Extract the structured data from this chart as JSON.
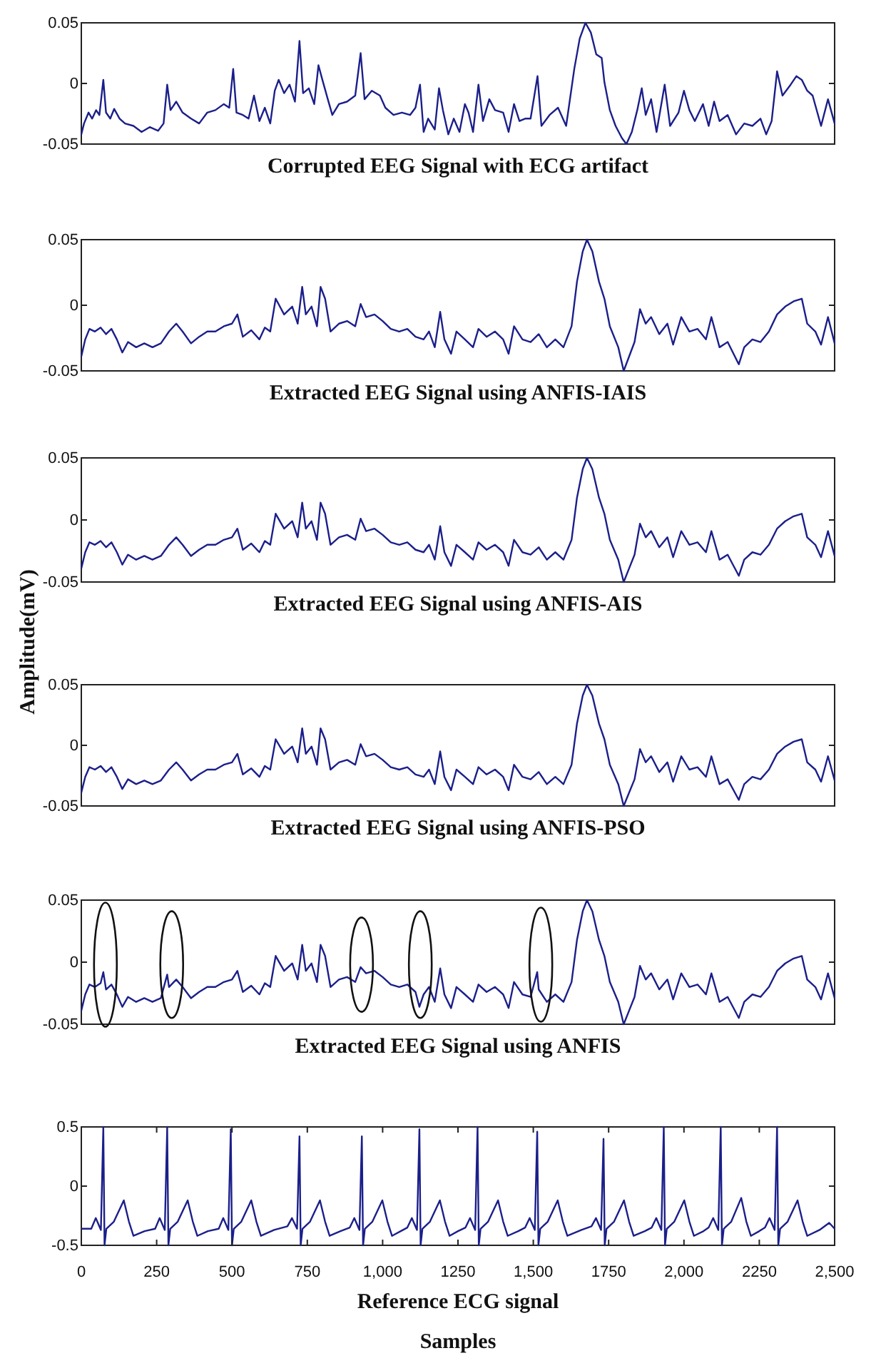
{
  "chart_data": [
    {
      "type": "line",
      "title": "Corrupted EEG Signal with ECG artifact",
      "xlim": [
        0,
        2500
      ],
      "ylim": [
        -0.05,
        0.05
      ],
      "yticks": [
        -0.05,
        0,
        0.05
      ],
      "tick_labels": "y",
      "color": "#1b1f8a",
      "x": [
        0,
        9,
        24,
        36,
        49,
        60,
        73,
        82,
        96,
        109,
        127,
        145,
        173,
        200,
        227,
        255,
        273,
        285,
        296,
        315,
        336,
        364,
        391,
        418,
        445,
        473,
        491,
        504,
        515,
        536,
        555,
        573,
        591,
        609,
        627,
        642,
        655,
        673,
        691,
        709,
        724,
        736,
        755,
        773,
        787,
        800,
        818,
        833,
        855,
        882,
        909,
        927,
        940,
        964,
        991,
        1009,
        1036,
        1064,
        1091,
        1109,
        1124,
        1136,
        1151,
        1173,
        1187,
        1200,
        1218,
        1236,
        1255,
        1273,
        1285,
        1300,
        1318,
        1333,
        1354,
        1373,
        1400,
        1418,
        1436,
        1454,
        1473,
        1491,
        1514,
        1527,
        1554,
        1582,
        1609,
        1636,
        1654,
        1673,
        1691,
        1709,
        1727,
        1736,
        1754,
        1773,
        1794,
        1809,
        1827,
        1845,
        1860,
        1873,
        1891,
        1909,
        1936,
        1954,
        1982,
        2000,
        2018,
        2036,
        2063,
        2082,
        2100,
        2118,
        2145,
        2173,
        2200,
        2227,
        2254,
        2273,
        2291,
        2309,
        2327,
        2354,
        2373,
        2391,
        2409,
        2427,
        2455,
        2478,
        2500
      ],
      "values": [
        -0.042,
        -0.033,
        -0.024,
        -0.029,
        -0.022,
        -0.026,
        0.003,
        -0.024,
        -0.029,
        -0.021,
        -0.029,
        -0.033,
        -0.035,
        -0.04,
        -0.036,
        -0.039,
        -0.033,
        -0.001,
        -0.022,
        -0.015,
        -0.024,
        -0.029,
        -0.033,
        -0.024,
        -0.022,
        -0.017,
        -0.02,
        0.012,
        -0.024,
        -0.026,
        -0.029,
        -0.01,
        -0.031,
        -0.02,
        -0.033,
        -0.006,
        0.003,
        -0.008,
        -0.001,
        -0.015,
        0.035,
        -0.008,
        -0.004,
        -0.017,
        0.015,
        0.003,
        -0.013,
        -0.026,
        -0.017,
        -0.015,
        -0.01,
        0.025,
        -0.013,
        -0.006,
        -0.01,
        -0.02,
        -0.026,
        -0.024,
        -0.026,
        -0.02,
        -0.001,
        -0.04,
        -0.029,
        -0.038,
        -0.004,
        -0.022,
        -0.042,
        -0.029,
        -0.04,
        -0.017,
        -0.024,
        -0.04,
        -0.001,
        -0.031,
        -0.013,
        -0.022,
        -0.024,
        -0.04,
        -0.017,
        -0.031,
        -0.029,
        -0.029,
        0.006,
        -0.035,
        -0.026,
        -0.02,
        -0.035,
        0.012,
        0.037,
        0.05,
        0.042,
        0.024,
        0.021,
        0.001,
        -0.022,
        -0.035,
        -0.045,
        -0.05,
        -0.04,
        -0.022,
        -0.004,
        -0.026,
        -0.013,
        -0.04,
        -0.001,
        -0.035,
        -0.024,
        -0.006,
        -0.022,
        -0.031,
        -0.017,
        -0.035,
        -0.015,
        -0.031,
        -0.026,
        -0.042,
        -0.033,
        -0.035,
        -0.029,
        -0.042,
        -0.031,
        0.01,
        -0.01,
        -0.001,
        0.006,
        0.003,
        -0.006,
        -0.01,
        -0.035,
        -0.013,
        -0.033
      ]
    },
    {
      "type": "line",
      "title": "Extracted EEG Signal using ANFIS-IAIS",
      "xlim": [
        0,
        2500
      ],
      "ylim": [
        -0.05,
        0.05
      ],
      "yticks": [
        -0.05,
        0,
        0.05
      ],
      "tick_labels": "y",
      "color": "#1b1f8a",
      "x": [
        0,
        13,
        27,
        45,
        64,
        82,
        100,
        118,
        136,
        155,
        182,
        209,
        236,
        264,
        291,
        315,
        336,
        364,
        391,
        418,
        445,
        473,
        500,
        518,
        536,
        564,
        591,
        609,
        627,
        645,
        673,
        700,
        718,
        733,
        745,
        764,
        782,
        794,
        809,
        827,
        855,
        882,
        909,
        927,
        945,
        973,
        1000,
        1027,
        1055,
        1082,
        1109,
        1136,
        1154,
        1173,
        1191,
        1205,
        1227,
        1245,
        1273,
        1300,
        1318,
        1345,
        1373,
        1400,
        1418,
        1436,
        1464,
        1491,
        1518,
        1545,
        1573,
        1600,
        1627,
        1645,
        1664,
        1678,
        1696,
        1718,
        1736,
        1754,
        1782,
        1800,
        1818,
        1836,
        1854,
        1873,
        1891,
        1918,
        1945,
        1964,
        1991,
        2018,
        2045,
        2073,
        2091,
        2118,
        2145,
        2182,
        2200,
        2227,
        2254,
        2282,
        2309,
        2336,
        2364,
        2391,
        2409,
        2436,
        2455,
        2478,
        2500
      ],
      "values": [
        -0.039,
        -0.026,
        -0.018,
        -0.02,
        -0.017,
        -0.022,
        -0.018,
        -0.026,
        -0.036,
        -0.028,
        -0.032,
        -0.029,
        -0.032,
        -0.029,
        -0.02,
        -0.014,
        -0.02,
        -0.029,
        -0.024,
        -0.02,
        -0.02,
        -0.016,
        -0.014,
        -0.007,
        -0.024,
        -0.019,
        -0.026,
        -0.017,
        -0.02,
        0.005,
        -0.007,
        -0.001,
        -0.014,
        0.014,
        -0.007,
        -0.001,
        -0.016,
        0.014,
        0.005,
        -0.02,
        -0.014,
        -0.012,
        -0.016,
        0.001,
        -0.009,
        -0.007,
        -0.012,
        -0.018,
        -0.02,
        -0.018,
        -0.024,
        -0.026,
        -0.02,
        -0.032,
        -0.005,
        -0.026,
        -0.037,
        -0.02,
        -0.026,
        -0.032,
        -0.018,
        -0.024,
        -0.02,
        -0.026,
        -0.037,
        -0.016,
        -0.026,
        -0.028,
        -0.022,
        -0.032,
        -0.026,
        -0.032,
        -0.016,
        0.018,
        0.041,
        0.05,
        0.041,
        0.018,
        0.005,
        -0.016,
        -0.032,
        -0.05,
        -0.039,
        -0.028,
        -0.003,
        -0.014,
        -0.009,
        -0.022,
        -0.014,
        -0.03,
        -0.009,
        -0.02,
        -0.018,
        -0.026,
        -0.009,
        -0.032,
        -0.028,
        -0.045,
        -0.032,
        -0.026,
        -0.028,
        -0.02,
        -0.007,
        -0.001,
        0.003,
        0.005,
        -0.014,
        -0.02,
        -0.03,
        -0.009,
        -0.029
      ]
    },
    {
      "type": "line",
      "title": "Extracted EEG Signal using ANFIS-AIS",
      "ylabel": "Amplitude(mV)",
      "xlim": [
        0,
        2500
      ],
      "ylim": [
        -0.05,
        0.05
      ],
      "yticks": [
        -0.05,
        0,
        0.05
      ],
      "tick_labels": "y",
      "color": "#1b1f8a",
      "x": [
        0,
        13,
        27,
        45,
        64,
        82,
        100,
        118,
        136,
        155,
        182,
        209,
        236,
        264,
        291,
        315,
        336,
        364,
        391,
        418,
        445,
        473,
        500,
        518,
        536,
        564,
        591,
        609,
        627,
        645,
        673,
        700,
        718,
        733,
        745,
        764,
        782,
        794,
        809,
        827,
        855,
        882,
        909,
        927,
        945,
        973,
        1000,
        1027,
        1055,
        1082,
        1109,
        1136,
        1154,
        1173,
        1191,
        1205,
        1227,
        1245,
        1273,
        1300,
        1318,
        1345,
        1373,
        1400,
        1418,
        1436,
        1464,
        1491,
        1518,
        1545,
        1573,
        1600,
        1627,
        1645,
        1664,
        1678,
        1696,
        1718,
        1736,
        1754,
        1782,
        1800,
        1818,
        1836,
        1854,
        1873,
        1891,
        1918,
        1945,
        1964,
        1991,
        2018,
        2045,
        2073,
        2091,
        2118,
        2145,
        2182,
        2200,
        2227,
        2254,
        2282,
        2309,
        2336,
        2364,
        2391,
        2409,
        2436,
        2455,
        2478,
        2500
      ],
      "values": [
        -0.039,
        -0.026,
        -0.018,
        -0.02,
        -0.017,
        -0.022,
        -0.018,
        -0.026,
        -0.036,
        -0.028,
        -0.032,
        -0.029,
        -0.032,
        -0.029,
        -0.02,
        -0.014,
        -0.02,
        -0.029,
        -0.024,
        -0.02,
        -0.02,
        -0.016,
        -0.014,
        -0.007,
        -0.024,
        -0.019,
        -0.026,
        -0.017,
        -0.02,
        0.005,
        -0.007,
        -0.001,
        -0.014,
        0.014,
        -0.007,
        -0.001,
        -0.016,
        0.014,
        0.005,
        -0.02,
        -0.014,
        -0.012,
        -0.016,
        0.001,
        -0.009,
        -0.007,
        -0.012,
        -0.018,
        -0.02,
        -0.018,
        -0.024,
        -0.026,
        -0.02,
        -0.032,
        -0.005,
        -0.026,
        -0.037,
        -0.02,
        -0.026,
        -0.032,
        -0.018,
        -0.024,
        -0.02,
        -0.026,
        -0.037,
        -0.016,
        -0.026,
        -0.028,
        -0.022,
        -0.032,
        -0.026,
        -0.032,
        -0.016,
        0.018,
        0.041,
        0.05,
        0.041,
        0.018,
        0.005,
        -0.016,
        -0.032,
        -0.05,
        -0.039,
        -0.028,
        -0.003,
        -0.014,
        -0.009,
        -0.022,
        -0.014,
        -0.03,
        -0.009,
        -0.02,
        -0.018,
        -0.026,
        -0.009,
        -0.032,
        -0.028,
        -0.045,
        -0.032,
        -0.026,
        -0.028,
        -0.02,
        -0.007,
        -0.001,
        0.003,
        0.005,
        -0.014,
        -0.02,
        -0.03,
        -0.009,
        -0.029
      ]
    },
    {
      "type": "line",
      "title": "Extracted EEG Signal using ANFIS-PSO",
      "xlim": [
        0,
        2500
      ],
      "ylim": [
        -0.05,
        0.05
      ],
      "yticks": [
        -0.05,
        0,
        0.05
      ],
      "tick_labels": "y",
      "color": "#1b1f8a",
      "x": [
        0,
        13,
        27,
        45,
        64,
        82,
        100,
        118,
        136,
        155,
        182,
        209,
        236,
        264,
        291,
        315,
        336,
        364,
        391,
        418,
        445,
        473,
        500,
        518,
        536,
        564,
        591,
        609,
        627,
        645,
        673,
        700,
        718,
        733,
        745,
        764,
        782,
        794,
        809,
        827,
        855,
        882,
        909,
        927,
        945,
        973,
        1000,
        1027,
        1055,
        1082,
        1109,
        1136,
        1154,
        1173,
        1191,
        1205,
        1227,
        1245,
        1273,
        1300,
        1318,
        1345,
        1373,
        1400,
        1418,
        1436,
        1464,
        1491,
        1518,
        1545,
        1573,
        1600,
        1627,
        1645,
        1664,
        1678,
        1696,
        1718,
        1736,
        1754,
        1782,
        1800,
        1818,
        1836,
        1854,
        1873,
        1891,
        1918,
        1945,
        1964,
        1991,
        2018,
        2045,
        2073,
        2091,
        2118,
        2145,
        2182,
        2200,
        2227,
        2254,
        2282,
        2309,
        2336,
        2364,
        2391,
        2409,
        2436,
        2455,
        2478,
        2500
      ],
      "values": [
        -0.039,
        -0.026,
        -0.018,
        -0.02,
        -0.017,
        -0.022,
        -0.018,
        -0.026,
        -0.036,
        -0.028,
        -0.032,
        -0.029,
        -0.032,
        -0.029,
        -0.02,
        -0.014,
        -0.02,
        -0.029,
        -0.024,
        -0.02,
        -0.02,
        -0.016,
        -0.014,
        -0.007,
        -0.024,
        -0.019,
        -0.026,
        -0.017,
        -0.02,
        0.005,
        -0.007,
        -0.001,
        -0.014,
        0.014,
        -0.007,
        -0.001,
        -0.016,
        0.014,
        0.005,
        -0.02,
        -0.014,
        -0.012,
        -0.016,
        0.001,
        -0.009,
        -0.007,
        -0.012,
        -0.018,
        -0.02,
        -0.018,
        -0.024,
        -0.026,
        -0.02,
        -0.032,
        -0.005,
        -0.026,
        -0.037,
        -0.02,
        -0.026,
        -0.032,
        -0.018,
        -0.024,
        -0.02,
        -0.026,
        -0.037,
        -0.016,
        -0.026,
        -0.028,
        -0.022,
        -0.032,
        -0.026,
        -0.032,
        -0.016,
        0.018,
        0.041,
        0.05,
        0.041,
        0.018,
        0.005,
        -0.016,
        -0.032,
        -0.05,
        -0.039,
        -0.028,
        -0.003,
        -0.014,
        -0.009,
        -0.022,
        -0.014,
        -0.03,
        -0.009,
        -0.02,
        -0.018,
        -0.026,
        -0.009,
        -0.032,
        -0.028,
        -0.045,
        -0.032,
        -0.026,
        -0.028,
        -0.02,
        -0.007,
        -0.001,
        0.003,
        0.005,
        -0.014,
        -0.02,
        -0.03,
        -0.009,
        -0.029
      ]
    },
    {
      "type": "line",
      "title": "Extracted EEG Signal using ANFIS",
      "xlim": [
        0,
        2500
      ],
      "ylim": [
        -0.05,
        0.05
      ],
      "yticks": [
        -0.05,
        0,
        0.05
      ],
      "tick_labels": "y",
      "color": "#1b1f8a",
      "x": [
        0,
        13,
        27,
        45,
        64,
        73,
        82,
        100,
        118,
        136,
        155,
        182,
        209,
        236,
        264,
        285,
        291,
        315,
        336,
        364,
        391,
        418,
        445,
        473,
        500,
        518,
        536,
        564,
        591,
        609,
        627,
        645,
        673,
        700,
        718,
        733,
        745,
        764,
        782,
        794,
        809,
        827,
        855,
        882,
        909,
        927,
        945,
        973,
        1000,
        1027,
        1055,
        1082,
        1109,
        1122,
        1136,
        1154,
        1173,
        1191,
        1205,
        1227,
        1245,
        1273,
        1300,
        1318,
        1345,
        1373,
        1400,
        1418,
        1436,
        1464,
        1491,
        1513,
        1518,
        1545,
        1573,
        1600,
        1627,
        1645,
        1664,
        1678,
        1696,
        1718,
        1736,
        1754,
        1782,
        1800,
        1818,
        1836,
        1854,
        1873,
        1891,
        1918,
        1945,
        1964,
        1991,
        2018,
        2045,
        2073,
        2091,
        2118,
        2145,
        2182,
        2200,
        2227,
        2254,
        2282,
        2309,
        2336,
        2364,
        2391,
        2409,
        2436,
        2455,
        2478,
        2500
      ],
      "values": [
        -0.039,
        -0.026,
        -0.018,
        -0.02,
        -0.017,
        -0.008,
        -0.022,
        -0.018,
        -0.026,
        -0.036,
        -0.028,
        -0.032,
        -0.029,
        -0.032,
        -0.029,
        -0.01,
        -0.02,
        -0.014,
        -0.02,
        -0.029,
        -0.024,
        -0.02,
        -0.02,
        -0.016,
        -0.014,
        -0.007,
        -0.024,
        -0.019,
        -0.026,
        -0.017,
        -0.02,
        0.005,
        -0.007,
        -0.001,
        -0.014,
        0.014,
        -0.007,
        -0.001,
        -0.016,
        0.014,
        0.005,
        -0.02,
        -0.014,
        -0.012,
        -0.016,
        -0.004,
        -0.009,
        -0.007,
        -0.012,
        -0.018,
        -0.02,
        -0.018,
        -0.024,
        -0.036,
        -0.026,
        -0.02,
        -0.032,
        -0.005,
        -0.026,
        -0.037,
        -0.02,
        -0.026,
        -0.032,
        -0.018,
        -0.024,
        -0.02,
        -0.026,
        -0.037,
        -0.016,
        -0.026,
        -0.028,
        -0.008,
        -0.022,
        -0.032,
        -0.026,
        -0.032,
        -0.016,
        0.018,
        0.041,
        0.05,
        0.041,
        0.018,
        0.005,
        -0.016,
        -0.032,
        -0.05,
        -0.039,
        -0.028,
        -0.003,
        -0.014,
        -0.009,
        -0.022,
        -0.014,
        -0.03,
        -0.009,
        -0.02,
        -0.018,
        -0.026,
        -0.009,
        -0.032,
        -0.028,
        -0.045,
        -0.032,
        -0.026,
        -0.028,
        -0.02,
        -0.007,
        -0.001,
        0.003,
        0.005,
        -0.014,
        -0.02,
        -0.03,
        -0.009,
        -0.029
      ]
    },
    {
      "type": "line",
      "title": "Reference ECG signal",
      "xlabel": "Samples",
      "xlim": [
        0,
        2500
      ],
      "ylim": [
        -0.5,
        0.5
      ],
      "yticks": [
        -0.5,
        0,
        0.5
      ],
      "xticks": [
        0,
        250,
        500,
        750,
        {
          "value": 1000,
          "label": "1,000"
        },
        1250,
        {
          "value": 1500,
          "label": "1,500"
        },
        1750,
        {
          "value": 2000,
          "label": "2,000"
        },
        2250,
        {
          "value": 2500,
          "label": "2,500"
        }
      ],
      "color": "#1b1f8a",
      "x": [
        0,
        33,
        48,
        65,
        73,
        77,
        83,
        108,
        141,
        158,
        173,
        210,
        245,
        260,
        277,
        285,
        289,
        295,
        320,
        353,
        370,
        385,
        420,
        456,
        471,
        488,
        496,
        500,
        506,
        531,
        564,
        581,
        596,
        640,
        684,
        699,
        716,
        724,
        728,
        734,
        759,
        792,
        809,
        824,
        860,
        891,
        906,
        923,
        931,
        935,
        941,
        966,
        999,
        1016,
        1031,
        1060,
        1082,
        1097,
        1114,
        1122,
        1126,
        1132,
        1157,
        1190,
        1207,
        1222,
        1250,
        1275,
        1290,
        1307,
        1315,
        1319,
        1325,
        1350,
        1383,
        1400,
        1415,
        1450,
        1473,
        1488,
        1505,
        1513,
        1517,
        1523,
        1548,
        1581,
        1598,
        1613,
        1660,
        1693,
        1708,
        1725,
        1733,
        1737,
        1743,
        1768,
        1801,
        1818,
        1833,
        1870,
        1893,
        1908,
        1925,
        1933,
        1937,
        1943,
        1968,
        2001,
        2018,
        2033,
        2065,
        2082,
        2097,
        2114,
        2122,
        2126,
        2132,
        2157,
        2190,
        2207,
        2222,
        2250,
        2269,
        2284,
        2301,
        2309,
        2313,
        2319,
        2344,
        2377,
        2394,
        2409,
        2450,
        2482,
        2500
      ],
      "values": [
        -0.36,
        -0.36,
        -0.27,
        -0.37,
        0.5,
        -0.5,
        -0.36,
        -0.3,
        -0.12,
        -0.3,
        -0.42,
        -0.38,
        -0.36,
        -0.27,
        -0.37,
        0.5,
        -0.5,
        -0.36,
        -0.3,
        -0.12,
        -0.3,
        -0.42,
        -0.38,
        -0.36,
        -0.27,
        -0.37,
        0.48,
        -0.5,
        -0.36,
        -0.3,
        -0.12,
        -0.3,
        -0.42,
        -0.37,
        -0.34,
        -0.27,
        -0.36,
        0.42,
        -0.5,
        -0.36,
        -0.3,
        -0.12,
        -0.3,
        -0.42,
        -0.38,
        -0.35,
        -0.27,
        -0.37,
        0.42,
        -0.5,
        -0.36,
        -0.3,
        -0.12,
        -0.3,
        -0.42,
        -0.38,
        -0.35,
        -0.27,
        -0.37,
        0.48,
        -0.5,
        -0.36,
        -0.3,
        -0.12,
        -0.3,
        -0.42,
        -0.38,
        -0.35,
        -0.27,
        -0.37,
        0.5,
        -0.5,
        -0.36,
        -0.3,
        -0.12,
        -0.3,
        -0.42,
        -0.38,
        -0.35,
        -0.27,
        -0.37,
        0.46,
        -0.5,
        -0.36,
        -0.3,
        -0.12,
        -0.3,
        -0.42,
        -0.37,
        -0.34,
        -0.27,
        -0.37,
        0.4,
        -0.5,
        -0.36,
        -0.3,
        -0.12,
        -0.3,
        -0.42,
        -0.38,
        -0.35,
        -0.27,
        -0.37,
        0.5,
        -0.5,
        -0.36,
        -0.3,
        -0.12,
        -0.3,
        -0.42,
        -0.38,
        -0.35,
        -0.27,
        -0.37,
        0.5,
        -0.5,
        -0.36,
        -0.3,
        -0.1,
        -0.3,
        -0.42,
        -0.38,
        -0.35,
        -0.27,
        -0.37,
        0.5,
        -0.5,
        -0.36,
        -0.3,
        -0.12,
        -0.3,
        -0.42,
        -0.37,
        -0.31,
        -0.36
      ]
    }
  ]
}
